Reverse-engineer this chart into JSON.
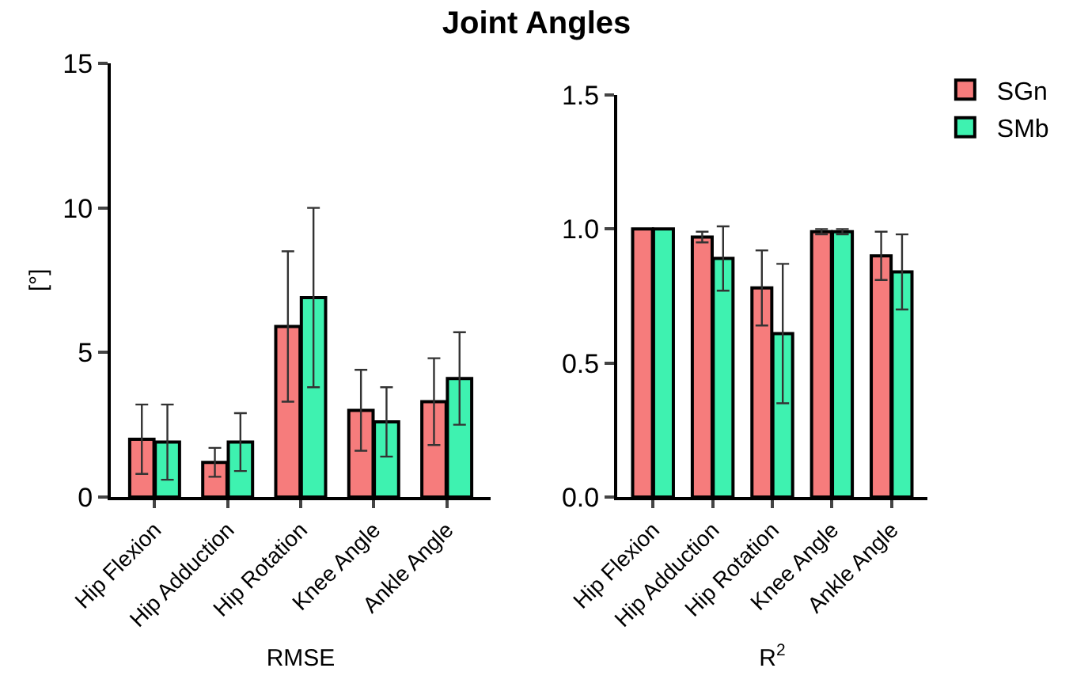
{
  "chart_data": [
    {
      "type": "bar",
      "title": "Joint Angles",
      "xlabel": "RMSE",
      "ylabel": "[°]",
      "categories": [
        "Hip Flexion",
        "Hip Adduction",
        "Hip Rotation",
        "Knee Angle",
        "Ankle Angle"
      ],
      "series": [
        {
          "color": "#f67c7c",
          "values": [
            2.0,
            1.2,
            5.9,
            3.0,
            3.3
          ],
          "errors": [
            1.2,
            0.5,
            2.6,
            1.4,
            1.5
          ]
        },
        {
          "color": "#3ef2b0",
          "values": [
            1.9,
            1.9,
            6.9,
            2.6,
            4.1
          ],
          "errors": [
            1.3,
            1.0,
            3.1,
            1.2,
            1.6
          ]
        }
      ],
      "ylim": [
        0,
        15
      ],
      "yticks": [
        0,
        5,
        10,
        15
      ],
      "grid": false,
      "legend": false
    },
    {
      "type": "bar",
      "xlabel": "R$^{2}$",
      "categories": [
        "Hip Flexion",
        "Hip Adduction",
        "Hip Rotation",
        "Knee Angle",
        "Ankle Angle"
      ],
      "series": [
        {
          "name": "SGn",
          "color": "#f67c7c",
          "values": [
            1.0,
            0.97,
            0.78,
            0.99,
            0.9
          ],
          "errors": [
            null,
            0.02,
            0.14,
            0.01,
            0.09
          ]
        },
        {
          "name": "SMb",
          "color": "#3ef2b0",
          "values": [
            1.0,
            0.89,
            0.61,
            0.99,
            0.84
          ],
          "errors": [
            null,
            0.12,
            0.26,
            0.01,
            0.14
          ]
        }
      ],
      "ylim": [
        0,
        1.5
      ],
      "yticks": [
        {
          "value": 0,
          "label": "0.0"
        },
        {
          "value": 0.5,
          "label": "0.5"
        },
        {
          "value": 1,
          "label": "1.0"
        },
        {
          "value": 1.5,
          "label": "1.5"
        }
      ],
      "grid": false,
      "legend": "top right"
    }
  ]
}
